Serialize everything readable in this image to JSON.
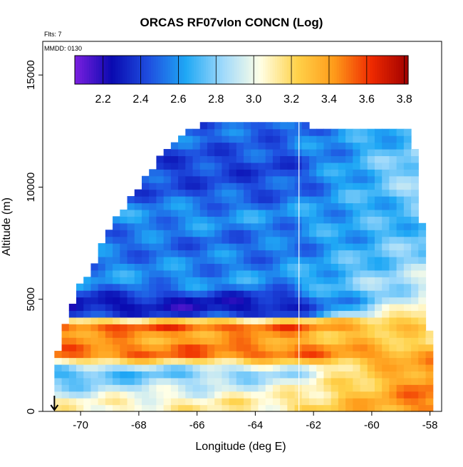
{
  "chart_data": {
    "type": "heatmap",
    "title": "ORCAS RF07vlon CONCN (Log)",
    "annotations": {
      "flights": "Flts: 7",
      "date": "MMDD: 0130"
    },
    "xlabel": "Longitude (deg E)",
    "ylabel": "Altitude (m)",
    "xlim": [
      -71.3,
      -57.6
    ],
    "ylim": [
      0,
      16500
    ],
    "x_ticks": [
      -70,
      -68,
      -66,
      -64,
      -62,
      -60,
      -58
    ],
    "y_ticks": [
      0,
      5000,
      10000,
      15000
    ],
    "x_tick_labels": [
      "-70",
      "-68",
      "-66",
      "-64",
      "-62",
      "-60",
      "-58"
    ],
    "y_tick_labels": [
      "0",
      "5000",
      "10000",
      "15000"
    ],
    "colorbar": {
      "range": [
        2.05,
        3.82
      ],
      "ticks": [
        2.2,
        2.4,
        2.6,
        2.8,
        3.0,
        3.2,
        3.4,
        3.6,
        3.8
      ],
      "tick_labels": [
        "2.2",
        "2.4",
        "2.6",
        "2.8",
        "3.0",
        "3.2",
        "3.4",
        "3.6",
        "3.8"
      ],
      "colors": [
        "#7b1fe0",
        "#0a0ab0",
        "#1f4fe0",
        "#1fa8f5",
        "#9fd9fb",
        "#ffffe6",
        "#ffd24a",
        "#ff9b1a",
        "#ef2a00",
        "#a00000"
      ]
    },
    "grid": {
      "lon_start": -70.9,
      "lon_end": -58.0,
      "lon_step": 0.25,
      "alt_start": 100,
      "alt_end": 13200,
      "alt_step": 300
    },
    "data_top_edge": [
      [
        -70.9,
        2100
      ],
      [
        -70.6,
        3600
      ],
      [
        -70.3,
        4600
      ],
      [
        -70.0,
        5700
      ],
      [
        -69.6,
        6400
      ],
      [
        -69.2,
        7600
      ],
      [
        -68.8,
        8600
      ],
      [
        -68.4,
        9300
      ],
      [
        -68.0,
        10100
      ],
      [
        -67.6,
        10800
      ],
      [
        -67.2,
        11400
      ],
      [
        -66.8,
        12000
      ],
      [
        -66.4,
        12400
      ],
      [
        -66.0,
        12700
      ],
      [
        -65.6,
        12900
      ],
      [
        -62.6,
        12900
      ],
      [
        -62.0,
        12700
      ],
      [
        -59.0,
        12700
      ],
      [
        -58.6,
        12500
      ],
      [
        -58.4,
        10600
      ],
      [
        -58.0,
        3200
      ],
      [
        -57.9,
        0
      ]
    ],
    "field_rows": [
      {
        "alt": 400,
        "value": 3.05,
        "east": 3.35,
        "slope": 0.01
      },
      {
        "alt": 1000,
        "value": 2.85,
        "east": 3.25,
        "slope": 0.02
      },
      {
        "alt": 1800,
        "value": 2.65,
        "east": 3.2,
        "slope": 0.02
      },
      {
        "alt": 2600,
        "value": 3.55,
        "east": 3.35,
        "slope": 0.0
      },
      {
        "alt": 3300,
        "value": 3.35,
        "east": 3.1,
        "slope": 0.0
      },
      {
        "alt": 3900,
        "value": 3.6,
        "east": 3.25,
        "slope": 0.0
      },
      {
        "alt": 4400,
        "value": 2.25,
        "east": 3.3,
        "slope": 0.0
      },
      {
        "alt": 5000,
        "value": 2.3,
        "east": 3.0,
        "slope": 0.0
      },
      {
        "alt": 5700,
        "value": 2.6,
        "east": 2.95,
        "slope": 0.0
      },
      {
        "alt": 6600,
        "value": 2.55,
        "east": 2.85,
        "slope": 0.0
      },
      {
        "alt": 7600,
        "value": 2.5,
        "east": 2.8,
        "slope": 0.0
      },
      {
        "alt": 8700,
        "value": 2.6,
        "east": 2.7,
        "slope": 0.0
      },
      {
        "alt": 9800,
        "value": 2.45,
        "east": 2.85,
        "slope": 0.0
      },
      {
        "alt": 11000,
        "value": 2.4,
        "east": 2.9,
        "slope": 0.0
      },
      {
        "alt": 12200,
        "value": 2.5,
        "east": 2.75,
        "slope": 0.0
      },
      {
        "alt": 13000,
        "value": 2.45,
        "east": 2.6,
        "slope": 0.0
      }
    ],
    "flight_track_lon": -62.5,
    "takeoff_marker": {
      "lon": -70.9,
      "alt": 0
    }
  }
}
